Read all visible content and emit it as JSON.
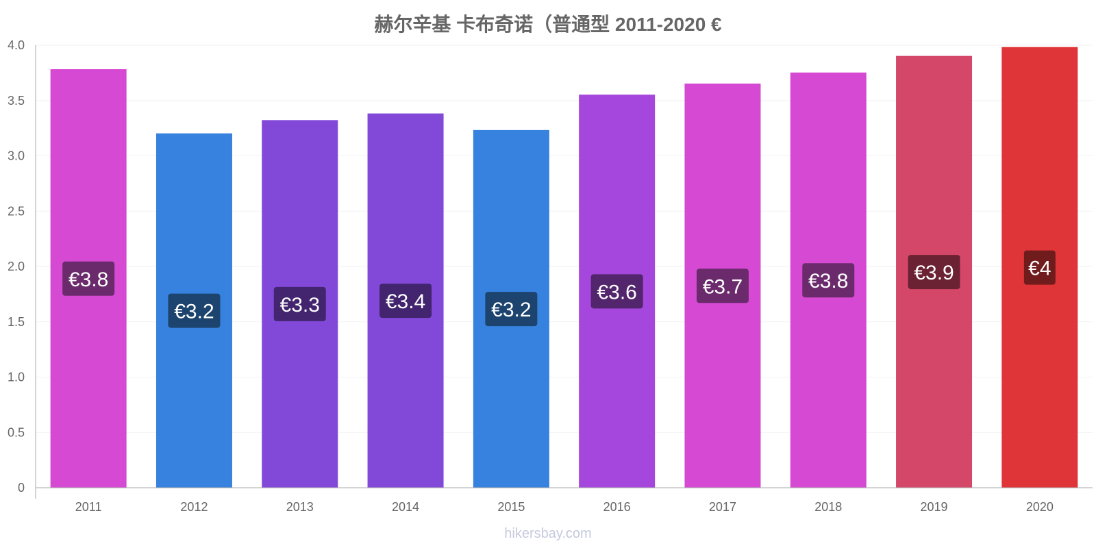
{
  "chart_data": {
    "type": "bar",
    "title": "赫尔辛基 卡布奇诺（普通型 2011-2020 €",
    "categories": [
      "2011",
      "2012",
      "2013",
      "2014",
      "2015",
      "2016",
      "2017",
      "2018",
      "2019",
      "2020"
    ],
    "values": [
      3.78,
      3.2,
      3.32,
      3.38,
      3.23,
      3.55,
      3.65,
      3.75,
      3.9,
      3.98
    ],
    "data_labels": [
      "€3.8",
      "€3.2",
      "€3.3",
      "€3.4",
      "€3.2",
      "€3.6",
      "€3.7",
      "€3.8",
      "€3.9",
      "€4"
    ],
    "bar_colors": [
      "#d649d3",
      "#3782de",
      "#8249d9",
      "#8249d9",
      "#3782de",
      "#a547dc",
      "#d649d3",
      "#d649d3",
      "#d54769",
      "#e03538"
    ],
    "label_bg_colors": [
      "#6b2a6c",
      "#1c446e",
      "#42256e",
      "#42256e",
      "#1c446e",
      "#53256d",
      "#6b2a6c",
      "#6b2a6c",
      "#6b2232",
      "#701c1c"
    ],
    "y_ticks": [
      "0",
      "0.5",
      "1.0",
      "1.5",
      "2.0",
      "2.5",
      "3.0",
      "3.5",
      "4.0"
    ],
    "ylim": [
      0,
      4
    ],
    "xlabel": "",
    "ylabel": "",
    "grid": true,
    "legend": false
  },
  "watermark": "hikersbay.com"
}
